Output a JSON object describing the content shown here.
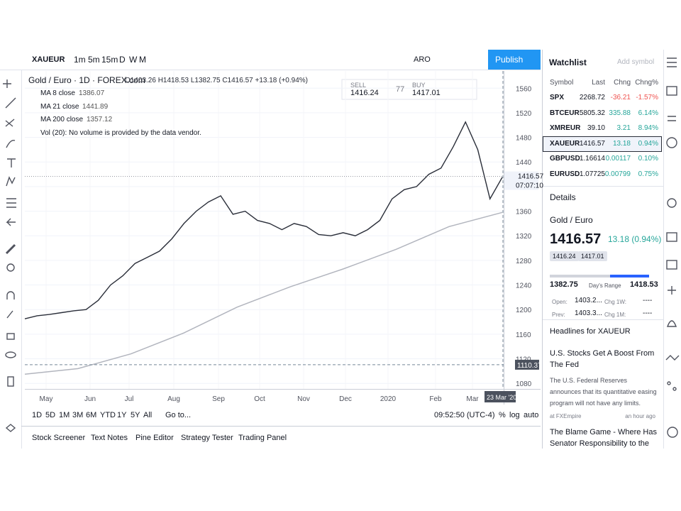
{
  "toolbar": {
    "symbol": "XAUEUR",
    "intervals": [
      "1m",
      "5m",
      "15m",
      "D",
      "W",
      "M"
    ],
    "alert_name": "ARO",
    "publish": "Publish"
  },
  "legend": {
    "title": "Gold / Euro · 1D · FOREX.com",
    "ohlc": "O1403.26 H1418.53 L1382.75 C1416.57 +13.18 (+0.94%)",
    "studies": [
      {
        "name": "MA 8 close",
        "value": "1386.07"
      },
      {
        "name": "MA 21 close",
        "value": "1441.89"
      },
      {
        "name": "MA 200 close",
        "value": "1357.12"
      },
      {
        "name": "Vol (20): No volume is provided by the data vendor."
      }
    ]
  },
  "trade": {
    "sell_label": "SELL",
    "sell": "1416.24",
    "spread": "77",
    "buy_label": "BUY",
    "buy": "1417.01"
  },
  "chart": {
    "ylim": [
      1071,
      1588
    ],
    "yticks": [
      1560,
      1520,
      1480,
      1440,
      1400,
      1360,
      1320,
      1280,
      1240,
      1200,
      1160,
      1120,
      1080
    ],
    "last_price": 1416.57,
    "last_time": "07:07:10",
    "crosshair_price": 1110.37,
    "months": [
      "May",
      "Jun",
      "Jul",
      "Aug",
      "Sep",
      "Oct",
      "Nov",
      "Dec",
      "2020",
      "Feb",
      "Mar"
    ],
    "crosshair_date": "23 Mar '20",
    "closes": [
      1185,
      1190,
      1192,
      1195,
      1198,
      1200,
      1215,
      1240,
      1255,
      1275,
      1285,
      1295,
      1315,
      1340,
      1360,
      1375,
      1385,
      1355,
      1360,
      1345,
      1340,
      1330,
      1340,
      1335,
      1322,
      1320,
      1325,
      1320,
      1330,
      1345,
      1380,
      1395,
      1400,
      1420,
      1430,
      1465,
      1505,
      1460,
      1380,
      1415
    ],
    "ma200": [
      1095,
      1104,
      1128,
      1162,
      1204,
      1237,
      1266,
      1298,
      1335,
      1358
    ]
  },
  "ranges": [
    "1D",
    "5D",
    "1M",
    "3M",
    "6M",
    "YTD",
    "1Y",
    "5Y",
    "All"
  ],
  "goto": "Go to...",
  "clock": "09:52:50 (UTC-4)",
  "scale_opts": [
    "%",
    "log",
    "auto"
  ],
  "tabs": [
    "Stock Screener",
    "Text Notes",
    "Pine Editor",
    "Strategy Tester",
    "Trading Panel"
  ],
  "watchlist": {
    "title": "Watchlist",
    "add": "Add symbol",
    "columns": [
      "Symbol",
      "Last",
      "Chng",
      "Chng%"
    ],
    "rows": [
      [
        "SPX",
        "2268.72",
        "-36.21",
        "-1.57%"
      ],
      [
        "BTCEUR",
        "5805.32",
        "335.88",
        "6.14%"
      ],
      [
        "XMREUR",
        "39.10",
        "3.21",
        "8.94%"
      ],
      [
        "XAUEUR",
        "1416.57",
        "13.18",
        "0.94%"
      ],
      [
        "GBPUSD",
        "1.16614",
        "0.00117",
        "0.10%"
      ],
      [
        "EURUSD",
        "1.07725",
        "0.00799",
        "0.75%"
      ]
    ]
  },
  "details": {
    "title": "Details",
    "name": "Gold / Euro",
    "price": "1416.57",
    "change": "13.18 (0.94%)",
    "bid": "1416.24",
    "ask": "1417.01",
    "low": "1382.75",
    "range_label": "Day's Range",
    "high": "1418.53",
    "open_label": "Open:",
    "open": "1403.2...",
    "chg1w_label": "Chg 1W:",
    "chg1w": "----",
    "prev_label": "Prev:",
    "prev": "1403.3...",
    "chg1m_label": "Chg 1M:",
    "chg1m": "----"
  },
  "headlines": {
    "title": "Headlines for XAUEUR",
    "items": [
      {
        "title": "U.S. Stocks Get A Boost From The Fed",
        "body": "The U.S. Federal Reserves announces that its quantitative easing program will not have any limits.",
        "source": "at FXEmpire",
        "time": "an hour ago"
      },
      {
        "title": "The Blame Game - Where Has Senator Responsibility to the"
      }
    ]
  }
}
